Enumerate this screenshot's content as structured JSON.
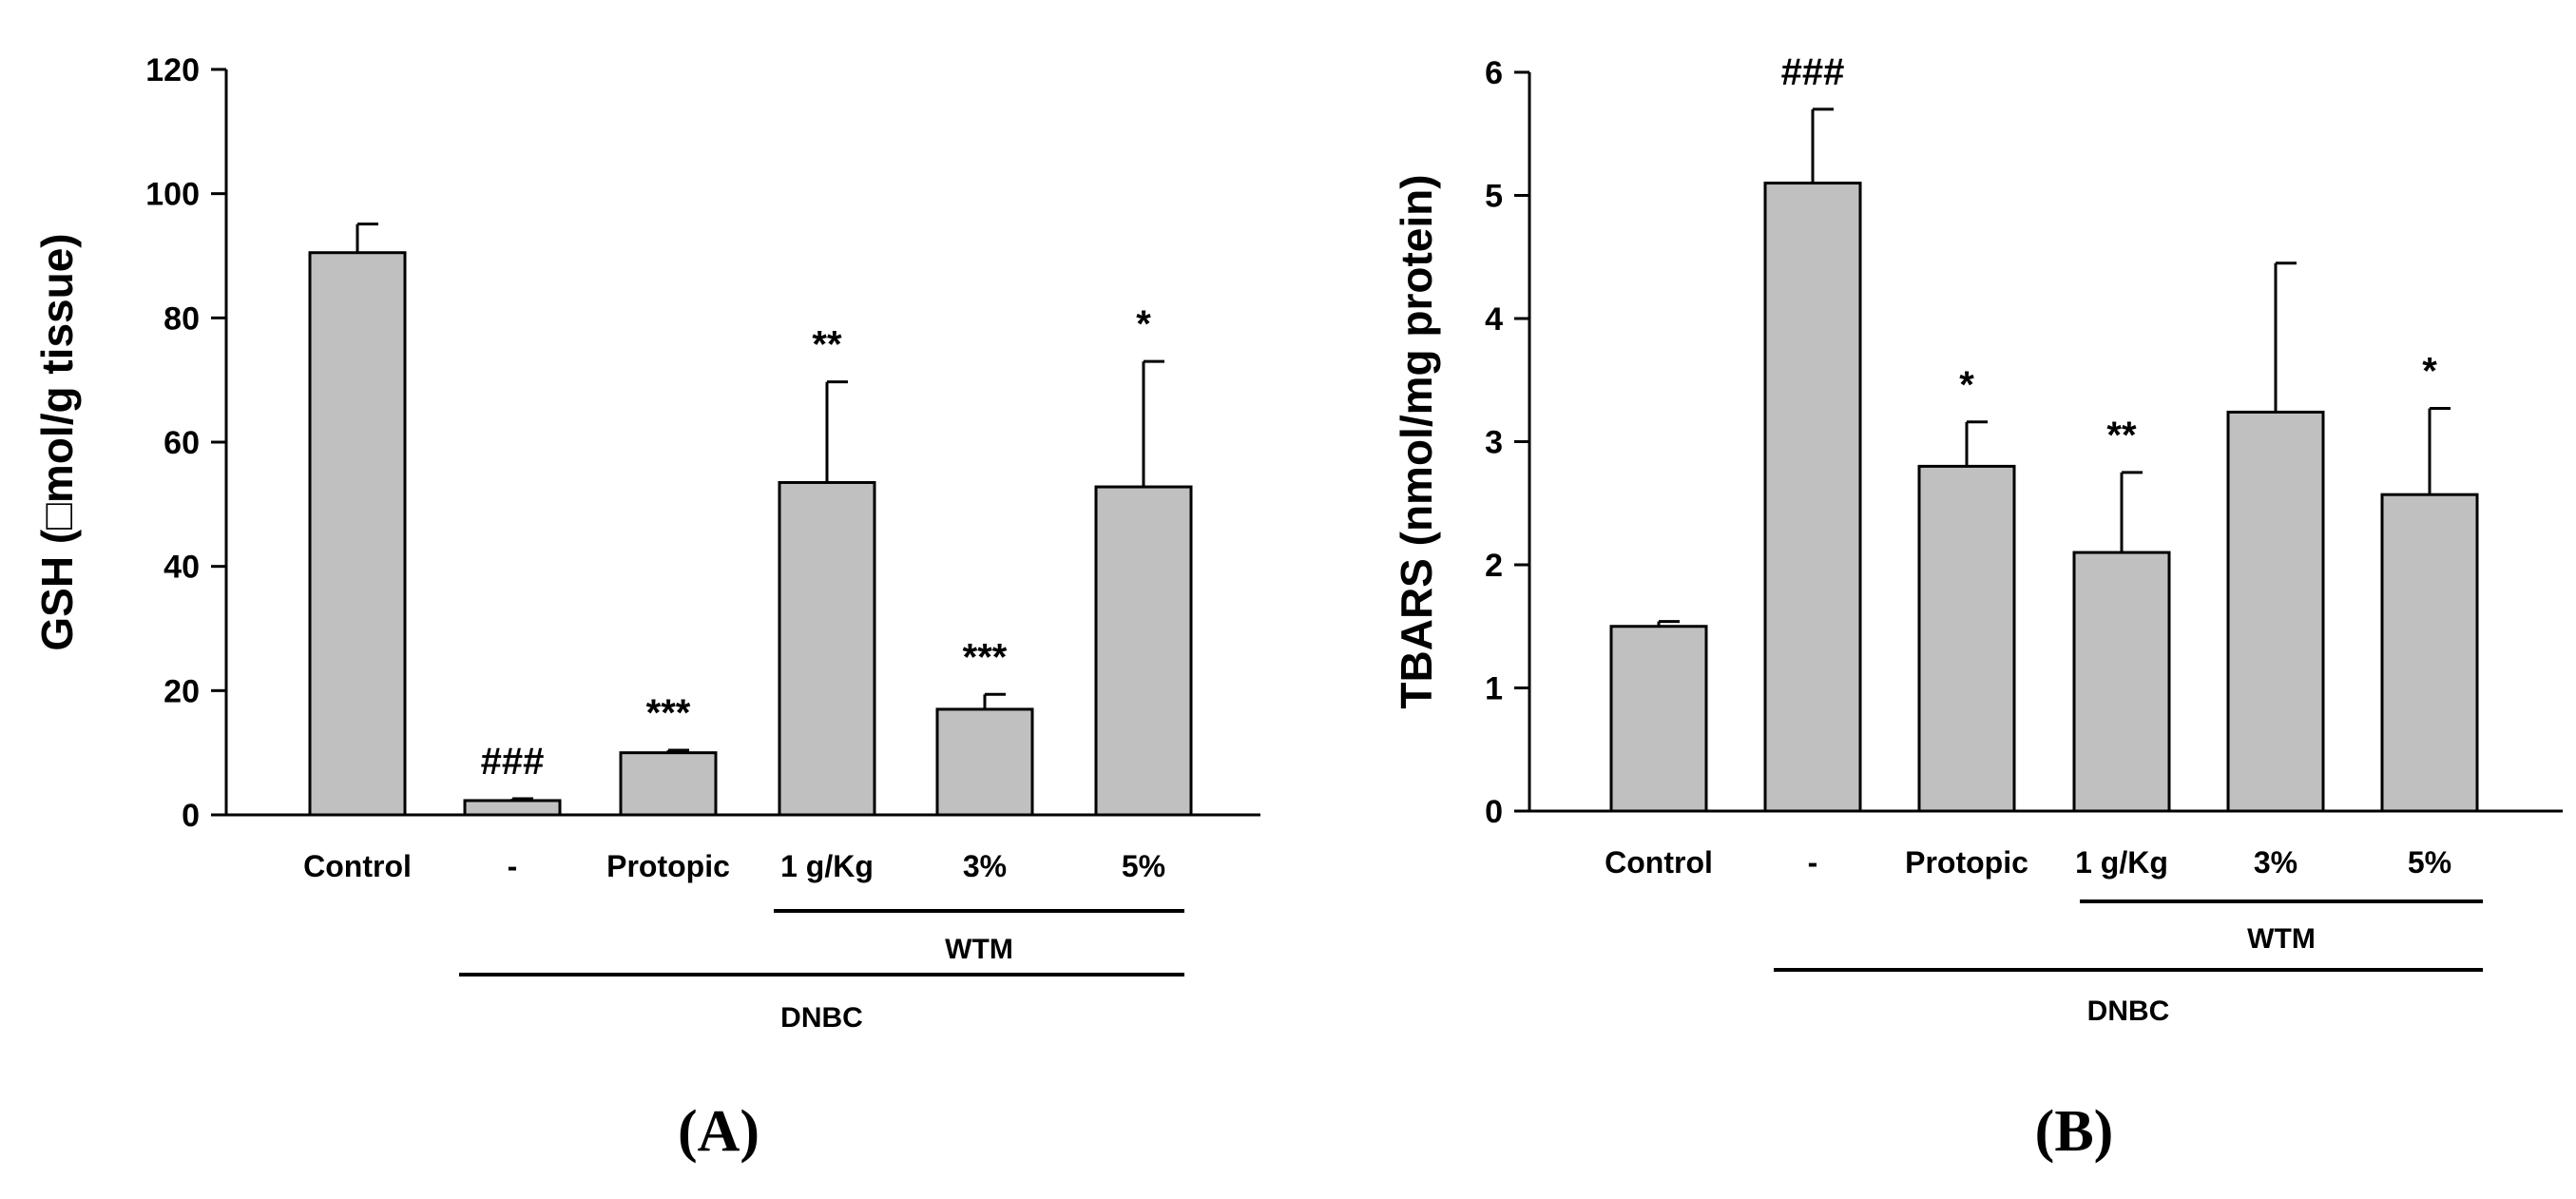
{
  "colors": {
    "bar_fill": "#c0c0c0",
    "stroke": "#000000"
  },
  "chart_data": [
    {
      "type": "bar",
      "panel_label": "(A)",
      "categories": [
        "Control",
        "-",
        "Protopic",
        "1 g/Kg",
        "3%",
        "5%"
      ],
      "values": [
        90.5,
        2.3,
        10.0,
        53.5,
        17.0,
        52.8
      ],
      "errors": [
        4.6,
        0.3,
        0.4,
        16.2,
        2.4,
        20.2
      ],
      "annotations": [
        "",
        "###",
        "***",
        "**",
        "***",
        "*"
      ],
      "ylabel": "GSH (□mol/g tissue)",
      "xlabel": "",
      "ylim": [
        0,
        120
      ],
      "yticks": [
        0,
        20,
        40,
        60,
        80,
        100,
        120
      ],
      "groups": [
        {
          "label": "WTM",
          "from": 3,
          "to": 5
        },
        {
          "label": "DNBC",
          "from": 1,
          "to": 5
        }
      ]
    },
    {
      "type": "bar",
      "panel_label": "(B)",
      "categories": [
        "Control",
        "-",
        "Protopic",
        "1 g/Kg",
        "3%",
        "5%"
      ],
      "values": [
        1.5,
        5.1,
        2.8,
        2.1,
        3.24,
        2.57
      ],
      "errors": [
        0.04,
        0.6,
        0.36,
        0.65,
        1.21,
        0.7
      ],
      "annotations": [
        "",
        "###",
        "*",
        "**",
        "",
        "*"
      ],
      "ylabel": "TBARS (nmol/mg protein)",
      "xlabel": "",
      "ylim": [
        0,
        6
      ],
      "yticks": [
        0,
        1,
        2,
        3,
        4,
        5,
        6
      ],
      "groups": [
        {
          "label": "WTM",
          "from": 3,
          "to": 5
        },
        {
          "label": "DNBC",
          "from": 1,
          "to": 5
        }
      ]
    }
  ]
}
